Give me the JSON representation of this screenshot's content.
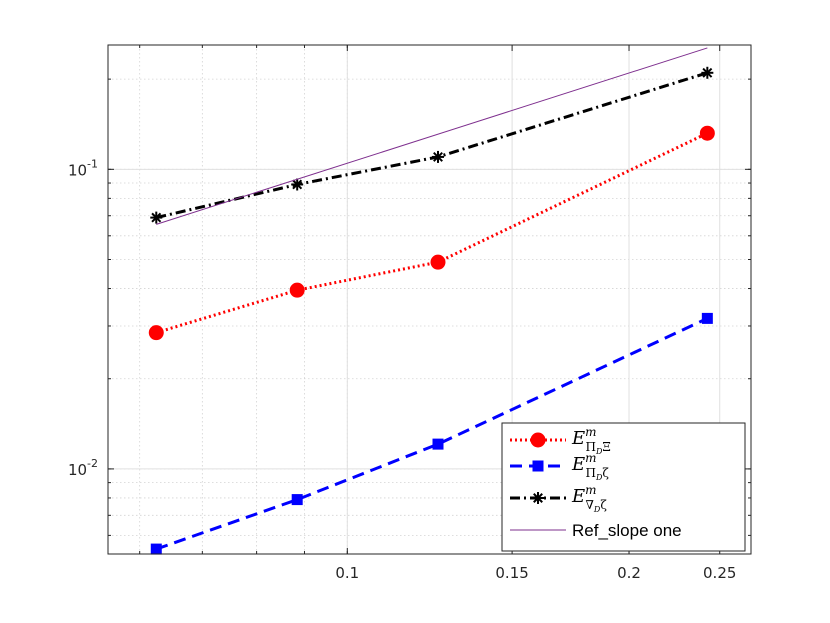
{
  "chart_data": {
    "type": "line",
    "title": "",
    "xlabel": "",
    "ylabel": "",
    "xscale": "log",
    "yscale": "log",
    "xlim": [
      0.0555,
      0.27
    ],
    "ylim": [
      0.0052,
      0.26
    ],
    "x_ticks": [
      0.1,
      0.15,
      0.2,
      0.25
    ],
    "x_tick_labels": [
      "0.1",
      "0.15",
      "0.2",
      "0.25"
    ],
    "y_ticks": [
      0.01,
      0.1
    ],
    "y_tick_labels": [
      {
        "base": "10",
        "exp": "-2"
      },
      {
        "base": "10",
        "exp": "-1"
      }
    ],
    "grid": true,
    "minor_grid": true,
    "legend_position": "bottom-right",
    "series": [
      {
        "key": "e_pi_xi",
        "legend": {
          "E": "E",
          "sup": "m",
          "sub": "Π",
          "subsub": "D",
          "tail": "Ξ"
        },
        "x": [
          0.0625,
          0.0884,
          0.125,
          0.2425
        ],
        "y": [
          0.0285,
          0.0395,
          0.049,
          0.132
        ],
        "color": "#ff0000",
        "line_style": "dotted",
        "marker": "circle"
      },
      {
        "key": "e_pi_zeta",
        "legend": {
          "E": "E",
          "sup": "m",
          "sub": "Π",
          "subsub": "D",
          "tail": "ζ"
        },
        "x": [
          0.0625,
          0.0884,
          0.125,
          0.2425
        ],
        "y": [
          0.0054,
          0.0079,
          0.0121,
          0.0318
        ],
        "color": "#0000ff",
        "line_style": "dashed",
        "marker": "square"
      },
      {
        "key": "e_grad_zeta",
        "legend": {
          "E": "E",
          "sup": "m",
          "sub": "∇",
          "subsub": "D",
          "tail": "ζ"
        },
        "x": [
          0.0625,
          0.0884,
          0.125,
          0.2425
        ],
        "y": [
          0.069,
          0.089,
          0.11,
          0.21
        ],
        "color": "#000000",
        "line_style": "dashdot",
        "marker": "asterisk"
      },
      {
        "key": "ref_slope_one",
        "legend": {
          "plain": "Ref_slope one"
        },
        "x": [
          0.0625,
          0.2425
        ],
        "y": [
          0.0655,
          0.2542
        ],
        "color": "#7e2f8e",
        "line_style": "solid",
        "marker": "none"
      }
    ]
  }
}
